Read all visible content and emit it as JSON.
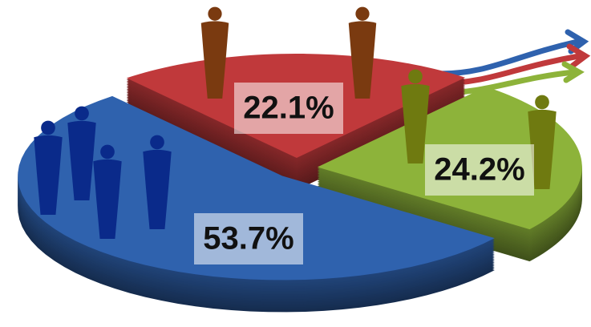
{
  "chart_data": {
    "type": "pie",
    "categories": [
      null,
      null,
      null
    ],
    "values": [
      22.1,
      24.2,
      53.7
    ],
    "value_labels": [
      "22.1%",
      "24.2%",
      "53.7%"
    ],
    "colors": [
      "#c0393b",
      "#8db33a",
      "#2f62ae"
    ]
  }
}
